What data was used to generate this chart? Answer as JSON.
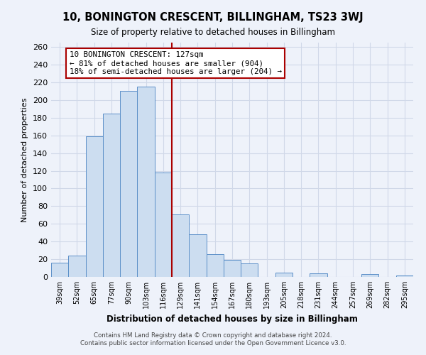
{
  "title": "10, BONINGTON CRESCENT, BILLINGHAM, TS23 3WJ",
  "subtitle": "Size of property relative to detached houses in Billingham",
  "xlabel": "Distribution of detached houses by size in Billingham",
  "ylabel": "Number of detached properties",
  "categories": [
    "39sqm",
    "52sqm",
    "65sqm",
    "77sqm",
    "90sqm",
    "103sqm",
    "116sqm",
    "129sqm",
    "141sqm",
    "154sqm",
    "167sqm",
    "180sqm",
    "193sqm",
    "205sqm",
    "218sqm",
    "231sqm",
    "244sqm",
    "257sqm",
    "269sqm",
    "282sqm",
    "295sqm"
  ],
  "values": [
    16,
    24,
    159,
    185,
    210,
    215,
    118,
    71,
    48,
    26,
    19,
    15,
    0,
    5,
    0,
    4,
    0,
    0,
    3,
    0,
    2
  ],
  "bar_color": "#ccddf0",
  "bar_edge_color": "#5b8fc8",
  "vline_x_index": 7,
  "vline_color": "#aa0000",
  "annotation_title": "10 BONINGTON CRESCENT: 127sqm",
  "annotation_line1": "← 81% of detached houses are smaller (904)",
  "annotation_line2": "18% of semi-detached houses are larger (204) →",
  "annotation_box_edge_color": "#aa0000",
  "ylim": [
    0,
    265
  ],
  "yticks": [
    0,
    20,
    40,
    60,
    80,
    100,
    120,
    140,
    160,
    180,
    200,
    220,
    240,
    260
  ],
  "footer_line1": "Contains HM Land Registry data © Crown copyright and database right 2024.",
  "footer_line2": "Contains public sector information licensed under the Open Government Licence v3.0.",
  "background_color": "#eef2fa",
  "grid_color": "#d0d8e8"
}
